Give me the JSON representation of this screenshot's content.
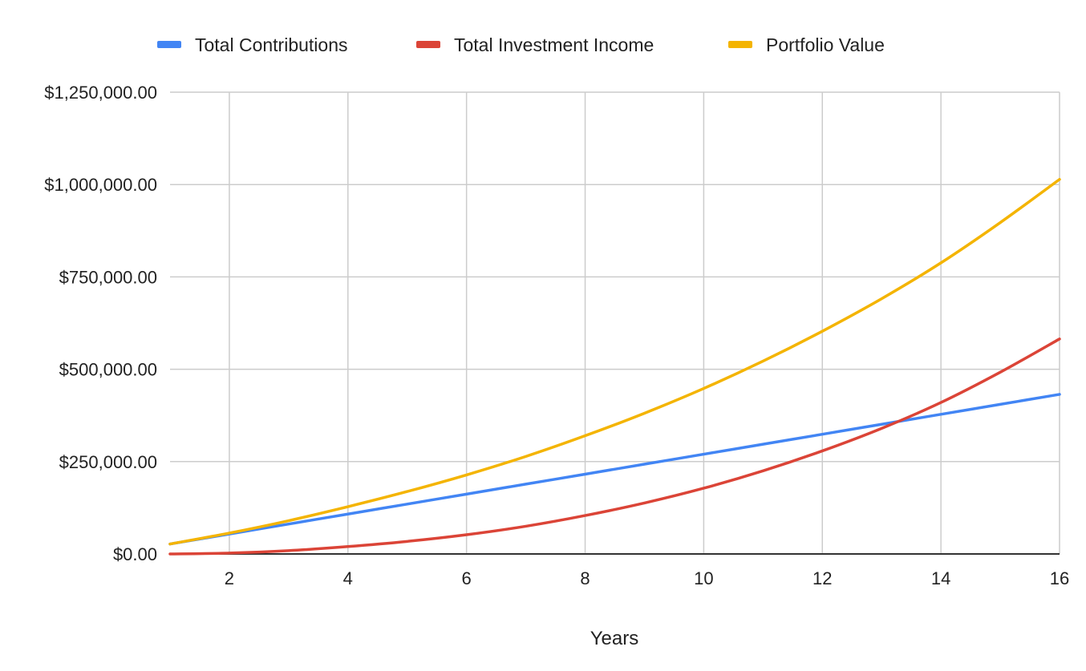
{
  "chart_data": {
    "type": "line",
    "title": "",
    "xlabel": "Years",
    "ylabel": "",
    "x": [
      1,
      2,
      3,
      4,
      5,
      6,
      7,
      8,
      9,
      10,
      11,
      12,
      13,
      14,
      15,
      16
    ],
    "xlim": [
      1,
      16
    ],
    "ylim": [
      0,
      1250000
    ],
    "x_ticks": [
      2,
      4,
      6,
      8,
      10,
      12,
      14,
      16
    ],
    "x_tick_labels": [
      "2",
      "4",
      "6",
      "8",
      "10",
      "12",
      "14",
      "16"
    ],
    "y_ticks": [
      0,
      250000,
      500000,
      750000,
      1000000,
      1250000
    ],
    "y_tick_labels": [
      "$0.00",
      "$250,000.00",
      "$500,000.00",
      "$750,000.00",
      "$1,000,000.00",
      "$1,250,000.00"
    ],
    "grid": true,
    "legend_position": "top",
    "series": [
      {
        "name": "Total Contributions",
        "color": "#4285f4",
        "values": [
          27000,
          54000,
          81000,
          108000,
          135000,
          162000,
          189000,
          216000,
          243000,
          270000,
          297000,
          324000,
          351000,
          378000,
          405000,
          432000
        ]
      },
      {
        "name": "Total Investment Income",
        "color": "#db4437",
        "values": [
          0,
          2500,
          9000,
          20000,
          34000,
          52000,
          75000,
          104000,
          138000,
          178000,
          225000,
          279000,
          340000,
          410000,
          492000,
          582000
        ]
      },
      {
        "name": "Portfolio Value",
        "color": "#f4b400",
        "values": [
          27000,
          56500,
          90000,
          128000,
          169000,
          214000,
          264000,
          320000,
          381000,
          448000,
          522000,
          603000,
          691000,
          788000,
          897000,
          1014000
        ]
      }
    ]
  }
}
